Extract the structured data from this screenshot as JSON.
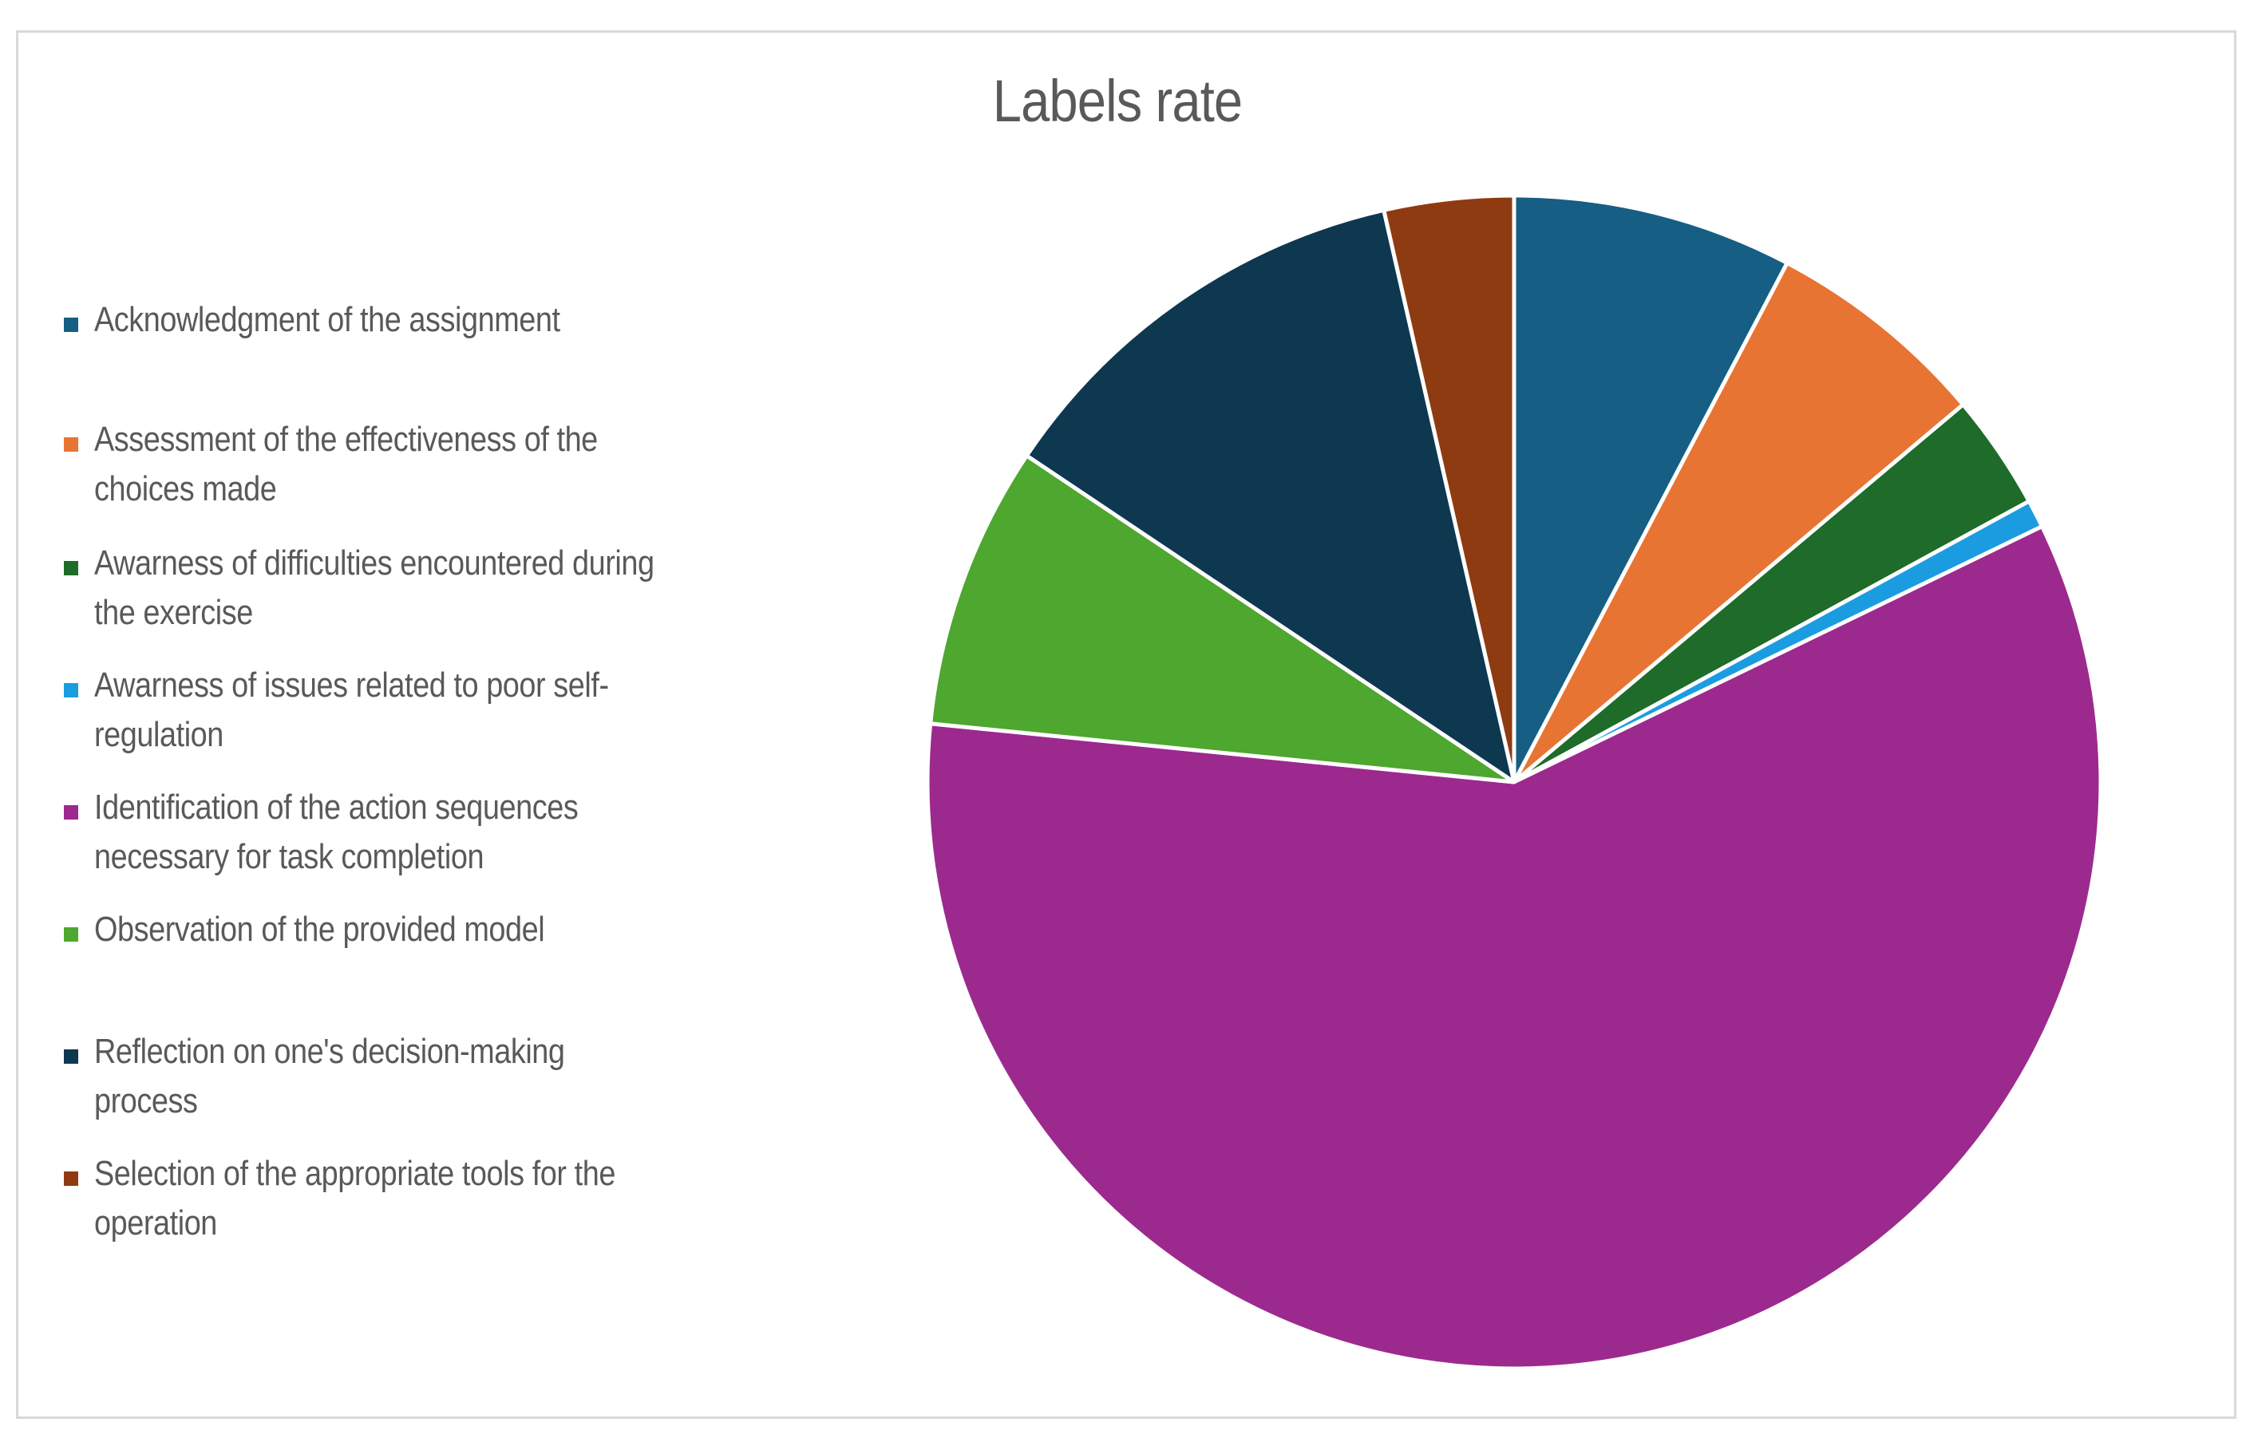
{
  "chart_data": {
    "type": "pie",
    "title": "Labels rate",
    "legend_position": "left",
    "start_angle_deg": 0,
    "direction": "clockwise",
    "categories": [
      "Acknowledgment of the assignment",
      "Assessment of the effectiveness of the choices made",
      "Awarness of difficulties encountered during the exercise",
      "Awarness of issues related to poor self-regulation",
      "Identification of the action sequences necessary for task completion",
      "Observation of the provided model",
      "Reflection on one's decision-making process",
      "Selection of the appropriate tools for the operation"
    ],
    "values": [
      8.0,
      6.4,
      3.3,
      0.8,
      61.0,
      8.1,
      12.5,
      3.7
    ],
    "colors": [
      "#165e83",
      "#e87433",
      "#1e6b2a",
      "#1b9ce0",
      "#9c2a8e",
      "#4ea72e",
      "#0e3850",
      "#8e3b11"
    ]
  }
}
